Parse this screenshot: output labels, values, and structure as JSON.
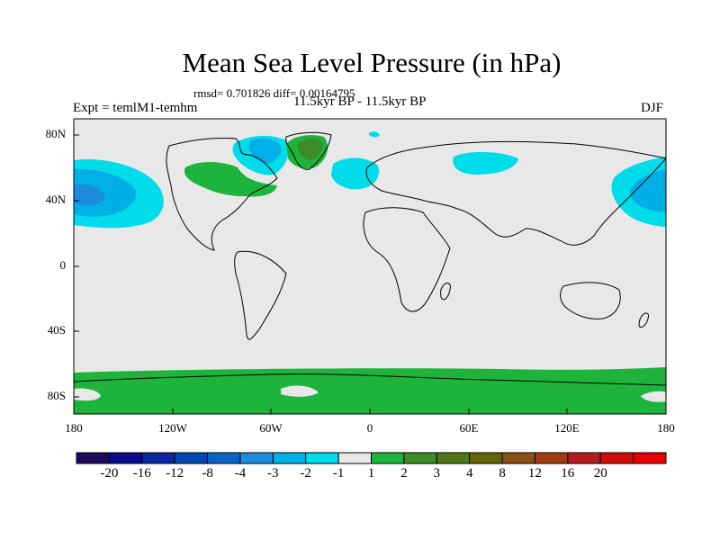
{
  "title": "Mean Sea Level Pressure (in hPa)",
  "stats": "rmsd= 0.701826 diff= 0.00164795",
  "expt": "Expt = temlM1-temhm",
  "period": "11.5kyr BP - 11.5kyr BP",
  "season": "DJF",
  "lat_labels": [
    "80N",
    "40N",
    "0",
    "40S",
    "80S"
  ],
  "lon_labels": [
    "180",
    "120W",
    "60W",
    "0",
    "60E",
    "120E",
    "180"
  ],
  "colorbar": {
    "colors": [
      "#1e0a5a",
      "#0a0a8c",
      "#0a28a0",
      "#0046b4",
      "#0a64c8",
      "#1e8cdc",
      "#00afe6",
      "#00dcea",
      "#e8e8e8",
      "#1eb43c",
      "#3c8c28",
      "#507814",
      "#64640a",
      "#8c5014",
      "#a03c14",
      "#b41e1e",
      "#d20a0a",
      "#e60000"
    ],
    "labels": [
      "-20",
      "-16",
      "-12",
      "-8",
      "-4",
      "-3",
      "-2",
      "-1",
      "1",
      "2",
      "3",
      "4",
      "8",
      "12",
      "16",
      "20"
    ]
  },
  "chart_data": {
    "type": "map",
    "variable": "Mean Sea Level Pressure difference (hPa)",
    "lat_range": [
      -90,
      90
    ],
    "lon_range": [
      -180,
      180
    ],
    "regions": [
      {
        "name": "North Pacific (west of dateline)",
        "band": "-3 to -1"
      },
      {
        "name": "North Pacific core",
        "band": "-4 to -3"
      },
      {
        "name": "Canadian Arctic / Baffin",
        "band": "-3 to -1"
      },
      {
        "name": "Greenland",
        "band": "2 to 4"
      },
      {
        "name": "Central North America",
        "band": "1 to 2"
      },
      {
        "name": "North Atlantic",
        "band": "-2 to -1"
      },
      {
        "name": "Scandinavia / Barents",
        "band": "-2 to -1"
      },
      {
        "name": "Southern Ocean / Antarctica",
        "band": "1 to 2"
      }
    ]
  },
  "colors": {
    "land_background": "#e8e8e8",
    "coast": "#000000"
  }
}
